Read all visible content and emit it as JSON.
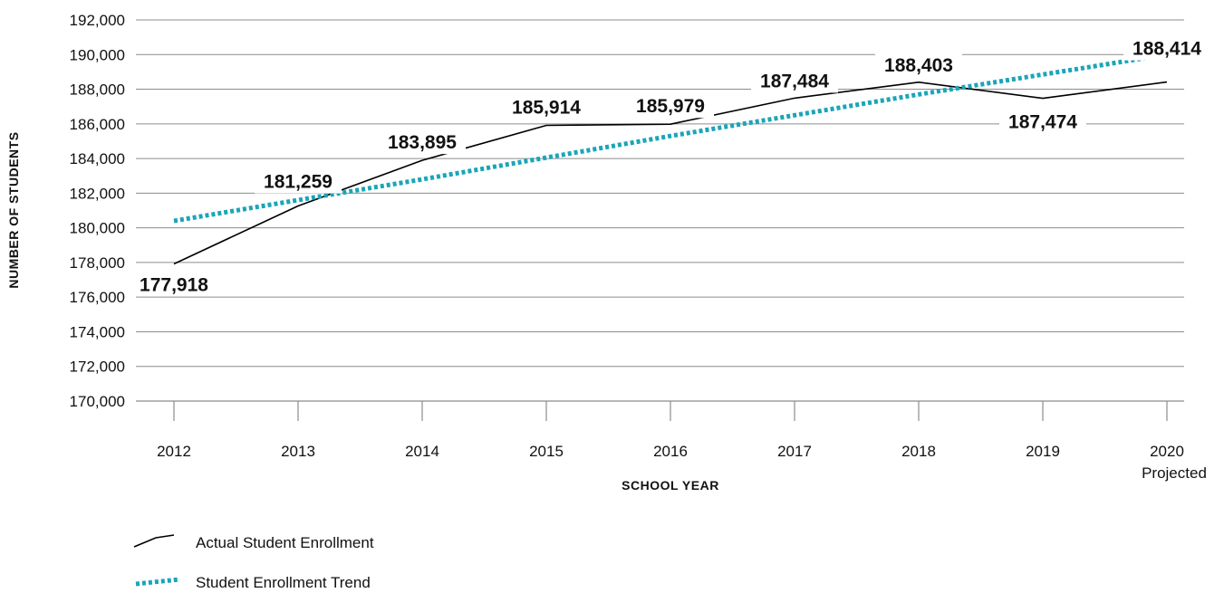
{
  "chart_data": {
    "type": "line",
    "title": "",
    "xlabel": "SCHOOL YEAR",
    "ylabel": "NUMBER OF STUDENTS",
    "categories": [
      "2012",
      "2013",
      "2014",
      "2015",
      "2016",
      "2017",
      "2018",
      "2019",
      "2020"
    ],
    "category_sublabels": [
      "",
      "",
      "",
      "",
      "",
      "",
      "",
      "",
      "Projected"
    ],
    "y_tick_labels": [
      "170,000",
      "172,000",
      "174,000",
      "176,000",
      "178,000",
      "180,000",
      "182,000",
      "184,000",
      "186,000",
      "188,000",
      "190,000",
      "192,000"
    ],
    "ylim": [
      170000,
      192000
    ],
    "y_step": 2000,
    "grid": true,
    "legend_position": "bottom-left",
    "series": [
      {
        "name": "Actual Student Enrollment",
        "style": "solid",
        "color": "#000000",
        "values": [
          177918,
          181259,
          183895,
          185914,
          185979,
          187484,
          188403,
          187474,
          188414
        ],
        "data_labels": [
          "177,918",
          "181,259",
          "183,895",
          "185,914",
          "185,979",
          "187,484",
          "188,403",
          "187,474",
          "188,414"
        ]
      },
      {
        "name": "Student Enrollment Trend",
        "style": "dotted",
        "color": "#1aa5b8",
        "values": [
          180400,
          181600,
          182800,
          184050,
          185300,
          186500,
          187700,
          188850,
          190000
        ]
      }
    ]
  }
}
